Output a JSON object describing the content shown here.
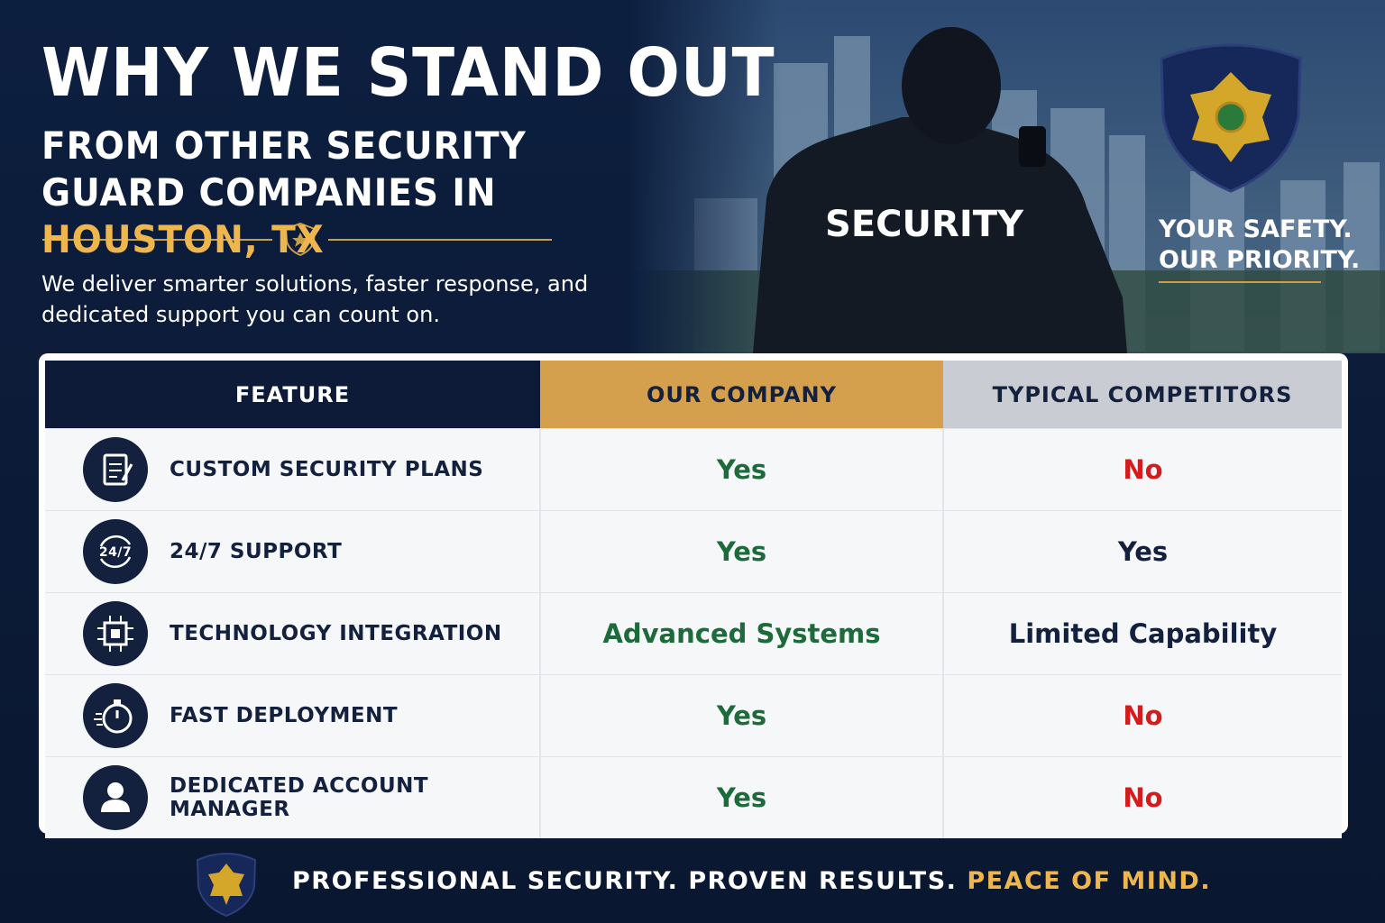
{
  "header": {
    "title": "WHY WE STAND OUT",
    "subtitle": "FROM OTHER SECURITY GUARD COMPANIES IN ",
    "subtitle_highlight": "HOUSTON, TX",
    "description": "We deliver smarter solutions, faster response, and dedicated support you can count on."
  },
  "image": {
    "jacket_text": "SECURITY"
  },
  "tagline": [
    "YOUR SAFETY.",
    "OUR PRIORITY."
  ],
  "table": {
    "columns": [
      "FEATURE",
      "OUR COMPANY",
      "TYPICAL COMPETITORS"
    ],
    "rows": [
      {
        "feature": "CUSTOM SECURITY PLANS",
        "ours": {
          "text": "Yes",
          "color": "#1d6a3a"
        },
        "theirs": {
          "text": "No",
          "color": "#d41c1c"
        }
      },
      {
        "feature": "24/7 SUPPORT",
        "icon_text": "24/7",
        "ours": {
          "text": "Yes",
          "color": "#1d6a3a"
        },
        "theirs": {
          "text": "Yes",
          "color": "#13213f"
        }
      },
      {
        "feature": "TECHNOLOGY INTEGRATION",
        "ours": {
          "text": "Advanced Systems",
          "color": "#1d6a3a"
        },
        "theirs": {
          "text": "Limited Capability",
          "color": "#13213f"
        }
      },
      {
        "feature": "FAST DEPLOYMENT",
        "ours": {
          "text": "Yes",
          "color": "#1d6a3a"
        },
        "theirs": {
          "text": "No",
          "color": "#d41c1c"
        }
      },
      {
        "feature": "DEDICATED ACCOUNT MANAGER",
        "ours": {
          "text": "Yes",
          "color": "#1d6a3a"
        },
        "theirs": {
          "text": "No",
          "color": "#d41c1c"
        }
      }
    ]
  },
  "footer": {
    "text": "PROFESSIONAL SECURITY. PROVEN RESULTS. ",
    "highlight": "PEACE OF MIND."
  }
}
